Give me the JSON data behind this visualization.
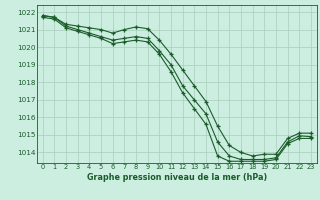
{
  "background_color": "#cceee0",
  "grid_color": "#aaccbb",
  "line_color": "#1a5c2a",
  "title": "Graphe pression niveau de la mer (hPa)",
  "xlim": [
    -0.5,
    23.5
  ],
  "ylim": [
    1013.4,
    1022.4
  ],
  "xticks": [
    0,
    1,
    2,
    3,
    4,
    5,
    6,
    7,
    8,
    9,
    10,
    11,
    12,
    13,
    14,
    15,
    16,
    17,
    18,
    19,
    20,
    21,
    22,
    23
  ],
  "yticks": [
    1014,
    1015,
    1016,
    1017,
    1018,
    1019,
    1020,
    1021,
    1022
  ],
  "curve1": {
    "x": [
      0,
      1,
      2,
      3,
      4,
      5,
      6,
      7,
      8,
      9,
      10,
      11,
      12,
      13,
      14,
      15,
      16,
      17,
      18,
      19,
      20,
      21,
      22,
      23
    ],
    "y": [
      1021.8,
      1021.7,
      1021.3,
      1021.2,
      1021.1,
      1021.0,
      1020.8,
      1021.0,
      1021.15,
      1021.05,
      1020.4,
      1019.6,
      1018.7,
      1017.8,
      1016.9,
      1015.5,
      1014.4,
      1014.0,
      1013.8,
      1013.9,
      1013.9,
      1014.8,
      1015.1,
      1015.1
    ]
  },
  "curve2": {
    "x": [
      0,
      1,
      2,
      3,
      4,
      5,
      6,
      7,
      8,
      9,
      10,
      11,
      12,
      13,
      14,
      15,
      16,
      17,
      18,
      19,
      20,
      21,
      22,
      23
    ],
    "y": [
      1021.8,
      1021.7,
      1021.2,
      1021.0,
      1020.8,
      1020.6,
      1020.4,
      1020.5,
      1020.6,
      1020.5,
      1019.8,
      1019.0,
      1017.8,
      1017.0,
      1016.2,
      1014.6,
      1013.8,
      1013.6,
      1013.6,
      1013.6,
      1013.7,
      1014.6,
      1014.95,
      1014.9
    ]
  },
  "curve3": {
    "x": [
      0,
      1,
      2,
      3,
      4,
      5,
      6,
      7,
      8,
      9,
      10,
      11,
      12,
      13,
      14,
      15,
      16,
      17,
      18,
      19,
      20,
      21,
      22,
      23
    ],
    "y": [
      1021.7,
      1021.6,
      1021.1,
      1020.9,
      1020.7,
      1020.5,
      1020.2,
      1020.3,
      1020.4,
      1020.3,
      1019.6,
      1018.6,
      1017.4,
      1016.5,
      1015.6,
      1013.8,
      1013.5,
      1013.5,
      1013.5,
      1013.5,
      1013.6,
      1014.5,
      1014.8,
      1014.8
    ]
  }
}
